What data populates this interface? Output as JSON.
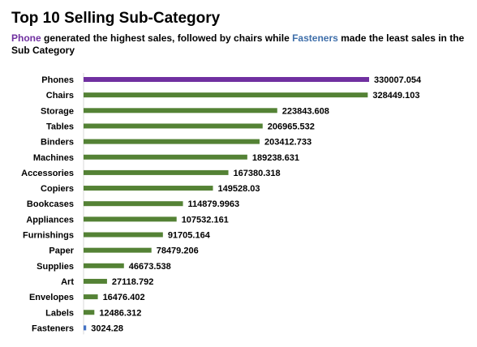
{
  "header": {
    "title": "Top 10 Selling Sub-Category",
    "subtitle_parts": {
      "highlight_start": "Phone",
      "middle": " generated the highest sales, followed by chairs while ",
      "highlight_end": "Fasteners",
      "end": " made the least sales in the Sub Category"
    }
  },
  "colors": {
    "default_bar": "#548235",
    "highest_bar": "#7030A0",
    "lowest_bar": "#4472C4",
    "highlight_phone_text": "#7030A0",
    "highlight_fasteners_text": "#3F6FAA"
  },
  "chart_data": {
    "type": "bar",
    "orientation": "horizontal",
    "title": "Top 10 Selling Sub-Category",
    "categories": [
      "Phones",
      "Chairs",
      "Storage",
      "Tables",
      "Binders",
      "Machines",
      "Accessories",
      "Copiers",
      "Bookcases",
      "Appliances",
      "Furnishings",
      "Paper",
      "Supplies",
      "Art",
      "Envelopes",
      "Labels",
      "Fasteners"
    ],
    "values": [
      330007.054,
      328449.103,
      223843.608,
      206965.532,
      203412.733,
      189238.631,
      167380.318,
      149528.03,
      114879.9963,
      107532.161,
      91705.164,
      78479.206,
      46673.538,
      27118.792,
      16476.402,
      12486.312,
      3024.28
    ],
    "value_labels": [
      "330007.054",
      "328449.103",
      "223843.608",
      "206965.532",
      "203412.733",
      "189238.631",
      "167380.318",
      "149528.03",
      "114879.9963",
      "107532.161",
      "91705.164",
      "78479.206",
      "46673.538",
      "27118.792",
      "16476.402",
      "12486.312",
      "3024.28"
    ],
    "xlim": [
      0,
      330007.054
    ],
    "grid": false,
    "legend": "none",
    "data_labels": "outside-end"
  }
}
